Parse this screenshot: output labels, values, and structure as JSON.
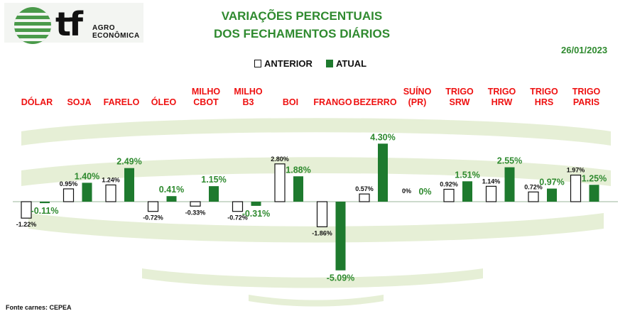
{
  "logo": {
    "brand": "tf",
    "line1": "AGRO",
    "line2": "ECONÔMICA"
  },
  "title": {
    "line1": "VARIAÇÕES PERCENTUAIS",
    "line2": "DOS FECHAMENTOS DIÁRIOS"
  },
  "date": "26/01/2023",
  "legend": {
    "previous": "ANTERIOR",
    "current": "ATUAL"
  },
  "colors": {
    "title": "#2f8a2f",
    "category": "#ee1111",
    "current_bar": "#1e7a2e",
    "previous_bar": "#ffffff",
    "current_label": "#2f8a2f",
    "wave": "#e6efd6"
  },
  "source": "Fonte carnes: CEPEA",
  "chart_data": {
    "type": "bar",
    "categories": [
      [
        "DÓLAR"
      ],
      [
        "SOJA"
      ],
      [
        "FARELO"
      ],
      [
        "ÓLEO"
      ],
      [
        "MILHO",
        "CBOT"
      ],
      [
        "MILHO",
        "B3"
      ],
      [
        "BOI"
      ],
      [
        "FRANGO"
      ],
      [
        "BEZERRO"
      ],
      [
        "SUÍNO",
        "(PR)"
      ],
      [
        "TRIGO",
        "SRW"
      ],
      [
        "TRIGO",
        "HRW"
      ],
      [
        "TRIGO",
        "HRS"
      ],
      [
        "TRIGO",
        "PARIS"
      ]
    ],
    "series": [
      {
        "name": "ANTERIOR",
        "values": [
          -1.22,
          0.95,
          1.24,
          -0.72,
          -0.33,
          -0.72,
          2.8,
          -1.86,
          0.57,
          0,
          0.92,
          1.14,
          0.72,
          1.97
        ],
        "labels": [
          "-1.22%",
          "0.95%",
          "1.24%",
          "-0.72%",
          "-0.33%",
          "-0.72%",
          "2.80%",
          "-1.86%",
          "0.57%",
          "0%",
          "0.92%",
          "1.14%",
          "0.72%",
          "1.97%"
        ]
      },
      {
        "name": "ATUAL",
        "values": [
          -0.11,
          1.4,
          2.49,
          0.41,
          1.15,
          -0.31,
          1.88,
          -5.09,
          4.3,
          0,
          1.51,
          2.55,
          0.97,
          1.25
        ],
        "labels": [
          "-0.11%",
          "1.40%",
          "2.49%",
          "0.41%",
          "1.15%",
          "-0.31%",
          "1.88%",
          "-5.09%",
          "4.30%",
          "0%",
          "1.51%",
          "2.55%",
          "0.97%",
          "1.25%"
        ]
      }
    ],
    "ylim": [
      -5.09,
      4.3
    ],
    "grid": false,
    "legend_position": "top-center"
  }
}
